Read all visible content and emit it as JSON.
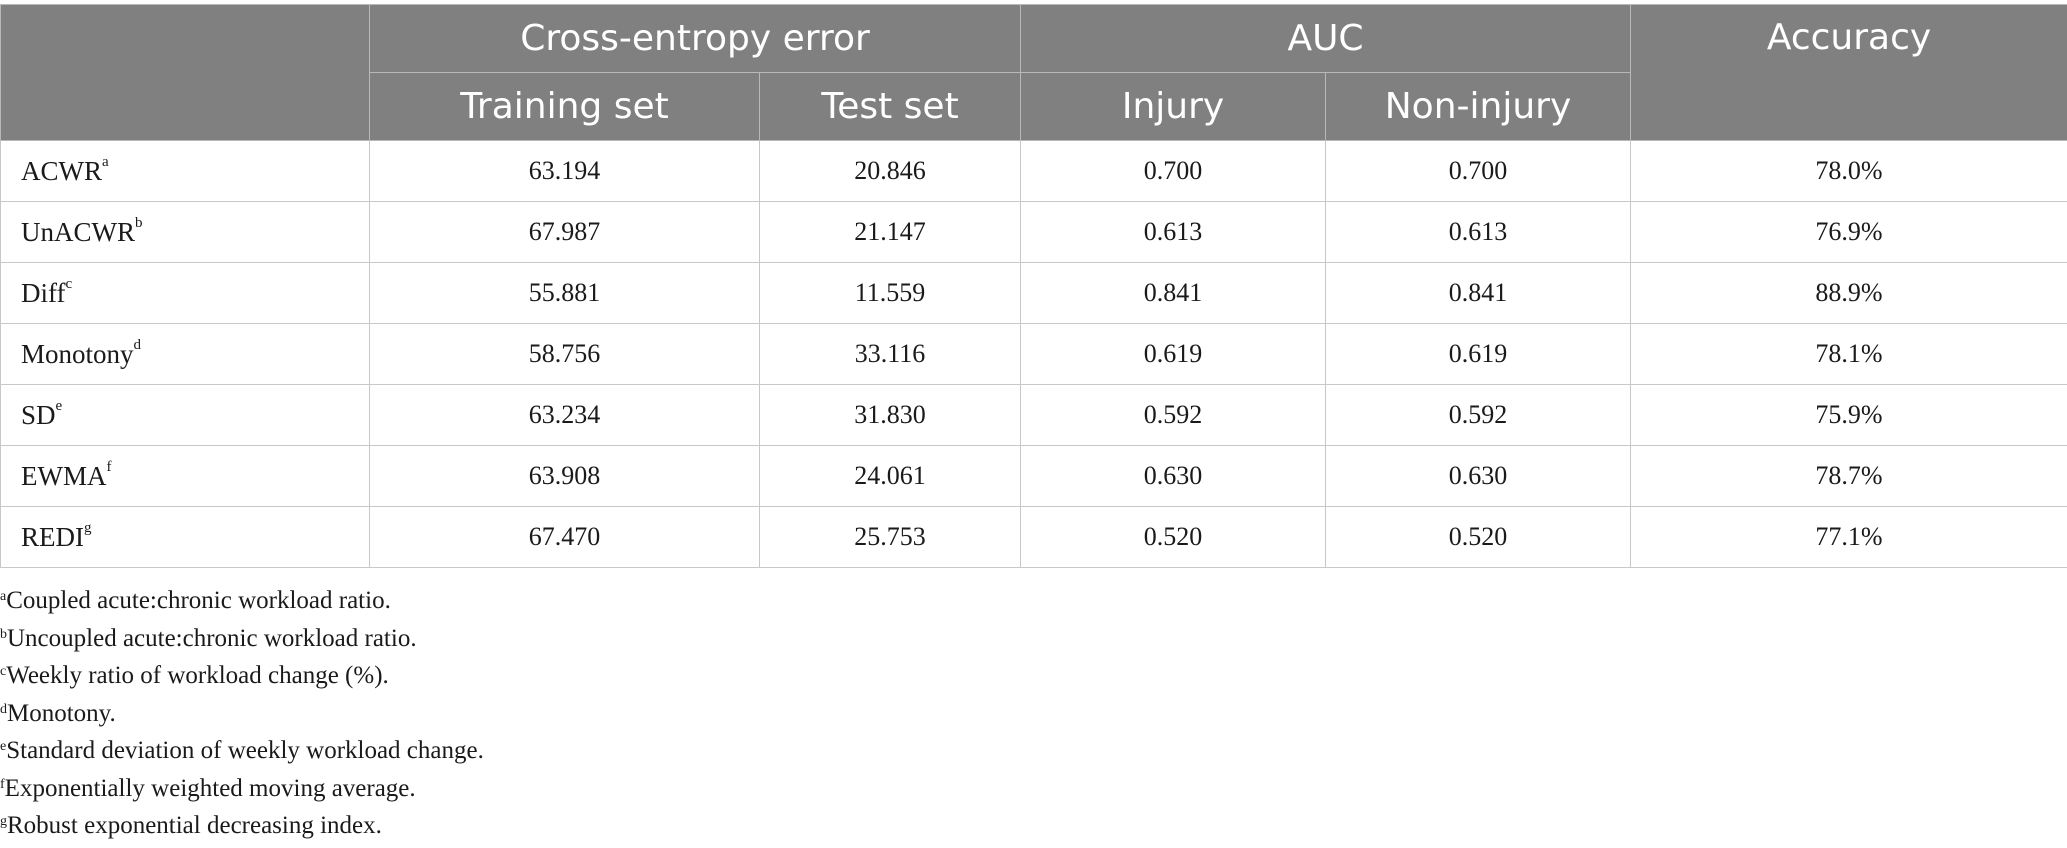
{
  "table": {
    "headers": {
      "group_cross_entropy": "Cross-entropy error",
      "group_auc": "AUC",
      "accuracy": "Accuracy",
      "training_set": "Training set",
      "test_set": "Test set",
      "injury": "Injury",
      "non_injury": "Non-injury"
    },
    "rows": [
      {
        "label": "ACWR",
        "mark": "a",
        "training": "63.194",
        "test": "20.846",
        "injury": "0.700",
        "non_injury": "0.700",
        "accuracy": "78.0%"
      },
      {
        "label": "UnACWR",
        "mark": "b",
        "training": "67.987",
        "test": "21.147",
        "injury": "0.613",
        "non_injury": "0.613",
        "accuracy": "76.9%"
      },
      {
        "label": "Diff",
        "mark": "c",
        "training": "55.881",
        "test": "11.559",
        "injury": "0.841",
        "non_injury": "0.841",
        "accuracy": "88.9%"
      },
      {
        "label": "Monotony",
        "mark": "d",
        "training": "58.756",
        "test": "33.116",
        "injury": "0.619",
        "non_injury": "0.619",
        "accuracy": "78.1%"
      },
      {
        "label": "SD",
        "mark": "e",
        "training": "63.234",
        "test": "31.830",
        "injury": "0.592",
        "non_injury": "0.592",
        "accuracy": "75.9%"
      },
      {
        "label": "EWMA",
        "mark": "f",
        "training": "63.908",
        "test": "24.061",
        "injury": "0.630",
        "non_injury": "0.630",
        "accuracy": "78.7%"
      },
      {
        "label": "REDI",
        "mark": "g",
        "training": "67.470",
        "test": "25.753",
        "injury": "0.520",
        "non_injury": "0.520",
        "accuracy": "77.1%"
      }
    ]
  },
  "footnotes": [
    {
      "mark": "a",
      "text": "Coupled acute:chronic workload ratio."
    },
    {
      "mark": "b",
      "text": "Uncoupled acute:chronic workload ratio."
    },
    {
      "mark": "c",
      "text": "Weekly ratio of workload change (%)."
    },
    {
      "mark": "d",
      "text": "Monotony."
    },
    {
      "mark": "e",
      "text": "Standard deviation of weekly workload change."
    },
    {
      "mark": "f",
      "text": "Exponentially weighted moving average."
    },
    {
      "mark": "g",
      "text": "Robust exponential decreasing index."
    }
  ],
  "colors": {
    "header_bg": "#808080",
    "header_text": "#ffffff",
    "grid": "#c8c8c8"
  }
}
